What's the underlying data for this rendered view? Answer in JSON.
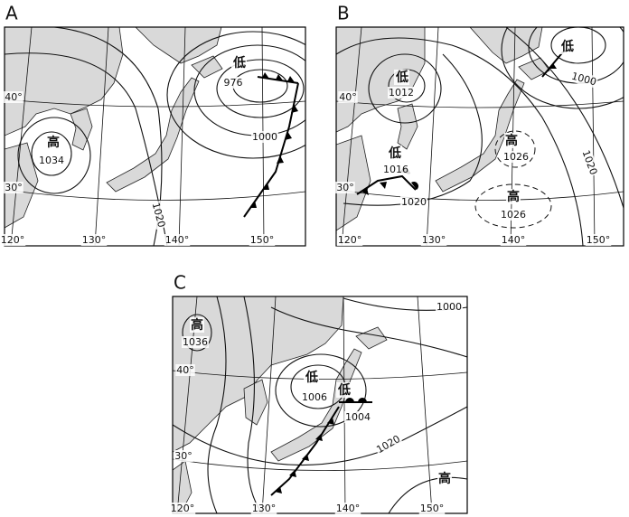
{
  "panels": [
    {
      "title": "A",
      "labels": [
        "低",
        "976",
        "1000",
        "高",
        "1034",
        "40°",
        "30°",
        "1020",
        "120°",
        "130°",
        "140°",
        "150°"
      ]
    },
    {
      "title": "B",
      "labels": [
        "低",
        "1000",
        "低",
        "1012",
        "40°",
        "高",
        "1026",
        "低",
        "1016",
        "30°",
        "1020",
        "高",
        "1026",
        "1020",
        "120°",
        "130°",
        "140°",
        "150°"
      ]
    },
    {
      "title": "C",
      "labels": [
        "高",
        "1036",
        "1000",
        "40°",
        "低",
        "1006",
        "低",
        "1004",
        "1020",
        "30°",
        "高",
        "120°",
        "130°",
        "140°",
        "150°"
      ]
    }
  ]
}
